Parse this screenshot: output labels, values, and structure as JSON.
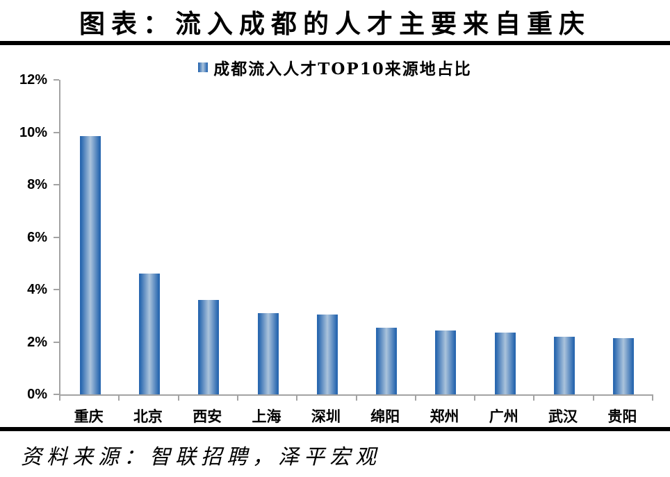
{
  "header": {
    "title": "图表：流入成都的人才主要来自重庆"
  },
  "legend": {
    "label": "成都流入人才TOP10来源地占比"
  },
  "footer": {
    "source": "资料来源：智联招聘，泽平宏观"
  },
  "colors": {
    "bar_edge": "#2a68b0",
    "bar_center": "#abc3dc",
    "axis": "#a3a3a3",
    "rule": "#000000",
    "text": "#000000"
  },
  "chart_data": {
    "type": "bar",
    "title": "成都流入人才TOP10来源地占比",
    "categories": [
      "重庆",
      "北京",
      "西安",
      "上海",
      "深圳",
      "绵阳",
      "郑州",
      "广州",
      "武汉",
      "贵阳"
    ],
    "values": [
      9.85,
      4.6,
      3.6,
      3.1,
      3.05,
      2.55,
      2.45,
      2.35,
      2.2,
      2.15
    ],
    "unit": "%",
    "xlabel": "",
    "ylabel": "",
    "ylim": [
      0,
      12
    ],
    "ytick_step": 2,
    "ytick_labels": [
      "0%",
      "2%",
      "4%",
      "6%",
      "8%",
      "10%",
      "12%"
    ],
    "grid": false,
    "legend_position": "top-center",
    "bar_style": "vertical-gradient-cylinder"
  }
}
